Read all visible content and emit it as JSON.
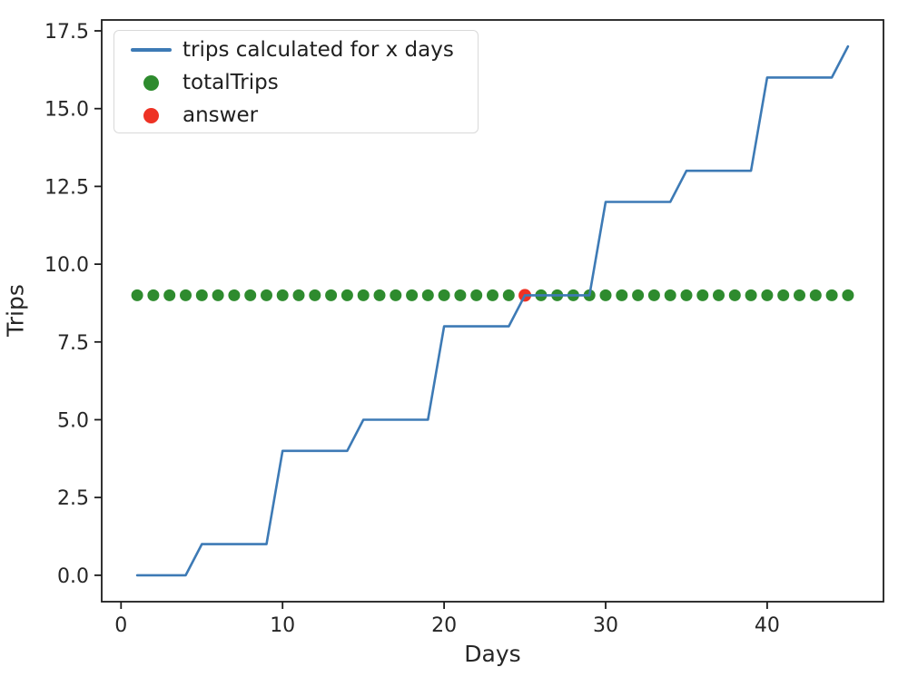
{
  "chart_data": {
    "type": "line",
    "title": "",
    "xlabel": "Days",
    "ylabel": "Trips",
    "xlim": [
      -1.2,
      47.2
    ],
    "ylim": [
      -0.85,
      17.85
    ],
    "xticks": [
      0,
      10,
      20,
      30,
      40
    ],
    "xtick_labels": [
      "0",
      "10",
      "20",
      "30",
      "40"
    ],
    "yticks": [
      0,
      2.5,
      5,
      7.5,
      10,
      12.5,
      15,
      17.5
    ],
    "ytick_labels": [
      "0.0",
      "2.5",
      "5.0",
      "7.5",
      "10.0",
      "12.5",
      "15.0",
      "17.5"
    ],
    "grid": false,
    "legend_position": "upper-left",
    "axis_color": "#1c1c1c",
    "text_color": "#262626",
    "legend_border_color": "#d9d9d9",
    "series": [
      {
        "name": "trips calculated for x days",
        "type": "line",
        "color": "#3d7ab5",
        "x": [
          1,
          2,
          3,
          4,
          5,
          6,
          7,
          8,
          9,
          10,
          11,
          12,
          13,
          14,
          15,
          16,
          17,
          18,
          19,
          20,
          21,
          22,
          23,
          24,
          25,
          26,
          27,
          28,
          29,
          30,
          31,
          32,
          33,
          34,
          35,
          36,
          37,
          38,
          39,
          40,
          41,
          42,
          43,
          44,
          45
        ],
        "values": [
          0,
          0,
          0,
          0,
          1,
          1,
          1,
          1,
          1,
          4,
          4,
          4,
          4,
          4,
          5,
          5,
          5,
          5,
          5,
          8,
          8,
          8,
          8,
          8,
          9,
          9,
          9,
          9,
          9,
          12,
          12,
          12,
          12,
          12,
          13,
          13,
          13,
          13,
          13,
          16,
          16,
          16,
          16,
          16,
          17
        ]
      },
      {
        "name": "totalTrips",
        "type": "scatter",
        "color": "#2e8b2e",
        "marker_radius": 6.5,
        "x": [
          1,
          2,
          3,
          4,
          5,
          6,
          7,
          8,
          9,
          10,
          11,
          12,
          13,
          14,
          15,
          16,
          17,
          18,
          19,
          20,
          21,
          22,
          23,
          24,
          25,
          26,
          27,
          28,
          29,
          30,
          31,
          32,
          33,
          34,
          35,
          36,
          37,
          38,
          39,
          40,
          41,
          42,
          43,
          44,
          45
        ],
        "values": [
          9,
          9,
          9,
          9,
          9,
          9,
          9,
          9,
          9,
          9,
          9,
          9,
          9,
          9,
          9,
          9,
          9,
          9,
          9,
          9,
          9,
          9,
          9,
          9,
          9,
          9,
          9,
          9,
          9,
          9,
          9,
          9,
          9,
          9,
          9,
          9,
          9,
          9,
          9,
          9,
          9,
          9,
          9,
          9,
          9
        ]
      },
      {
        "name": "answer",
        "type": "scatter",
        "color": "#ee3224",
        "marker_radius": 7,
        "x": [
          25
        ],
        "values": [
          9
        ]
      }
    ]
  }
}
